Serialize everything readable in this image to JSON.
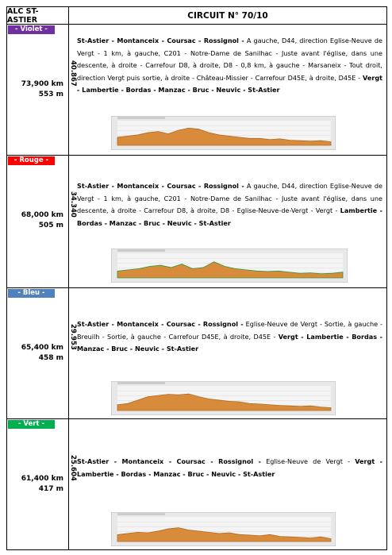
{
  "header": {
    "club": "ALC ST-ASTIER",
    "title": "CIRCUIT N° 70/10"
  },
  "circuits": [
    {
      "label": "- Violet -",
      "color": "#7030a0",
      "distance": "73,900 km",
      "elevation": "553 m",
      "code": "40.867",
      "route": [
        {
          "text": "St-Astier - Montanceix - Coursac - Rossignol -",
          "bold": true
        },
        {
          "text": "A gauche, D44, direction Eglise-Neuve de Vergt - 1 km, à gauche, C201 - Notre-Dame de Sanilhac - Juste avant l'église, dans une descente, à droite - Carrefour D8, à droite, D8 - 0,8 km, à gauche - Marsaneix - Tout droit, direction Vergt puis sortie, à droite - Château-Missier - Carrefour D45E, à droite, D45E -",
          "bold": false
        },
        {
          "text": "Vergt - Lambertie - Bordas - Manzac - Bruc - Neuvic - St-Astier",
          "bold": true
        }
      ]
    },
    {
      "label": "- Rouge -",
      "color": "#ff0000",
      "distance": "68,000 km",
      "elevation": "505 m",
      "code": "34.340",
      "route": [
        {
          "text": "St-Astier - Montanceix - Coursac - Rossignol -",
          "bold": true
        },
        {
          "text": "A gauche, D44, direction Eglise-Neuve de Vergt - 1 km, à gauche, C201 - Notre-Dame de Sanilhac - Juste avant l'église, dans une descente, à droite - Carrefour D8, à droite, D8 - Eglise-Neuve-de-Vergt - Vergt -",
          "bold": false
        },
        {
          "text": "Lambertie - Bordas - Manzac - Bruc - Neuvic - St-Astier",
          "bold": true
        }
      ]
    },
    {
      "label": "- Bleu -",
      "color": "#4f81bd",
      "distance": "65,400 km",
      "elevation": "458 m",
      "code": "29.953",
      "route": [
        {
          "text": "St-Astier - Montanceix - Coursac - Rossignol -",
          "bold": true
        },
        {
          "text": "Eglise-Neuve de Vergt - Sortie, à gauche - Breuilh - Sortie, à gauche - Carrefour D45E, à droite, D45E -",
          "bold": false
        },
        {
          "text": "Vergt - Lambertie - Bordas - Manzac - Bruc - Neuvic - St-Astier",
          "bold": true
        }
      ]
    },
    {
      "label": "- Vert -",
      "color": "#00b050",
      "distance": "61,400 km",
      "elevation": "417 m",
      "code": "25.604",
      "route": [
        {
          "text": "St-Astier - Montanceix - Coursac - Rossignol -",
          "bold": true
        },
        {
          "text": "Eglise-Neuve de Vergt -",
          "bold": false
        },
        {
          "text": "Vergt - Lambertie - Bordas - Manzac - Bruc - Neuvic - St-Astier",
          "bold": true
        }
      ]
    }
  ]
}
